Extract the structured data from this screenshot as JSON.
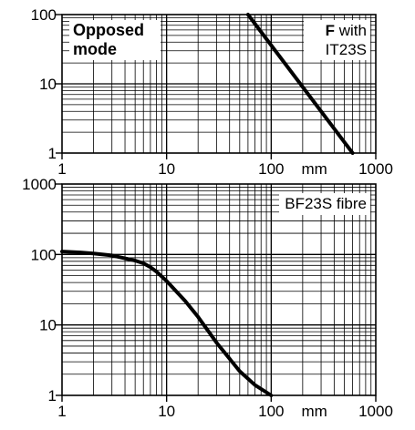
{
  "chart_data": [
    {
      "type": "line",
      "scale": {
        "x": "log",
        "y": "log"
      },
      "xlim": [
        1,
        1000
      ],
      "ylim": [
        1,
        100
      ],
      "grid": true,
      "x_ticks": [
        "1",
        "10",
        "100",
        "1000"
      ],
      "y_ticks": [
        "1",
        "10",
        "100"
      ],
      "x_unit": "mm",
      "annotations": {
        "left": [
          "Opposed",
          "mode"
        ],
        "right_bold": "F",
        "right_line1": " with",
        "right_line2": "IT23S"
      },
      "series": [
        {
          "x": [
            60,
            600
          ],
          "y": [
            100,
            1
          ]
        }
      ]
    },
    {
      "type": "line",
      "scale": {
        "x": "log",
        "y": "log"
      },
      "xlim": [
        1,
        1000
      ],
      "ylim": [
        1,
        1000
      ],
      "grid": true,
      "x_ticks": [
        "1",
        "10",
        "100",
        "1000"
      ],
      "y_ticks": [
        "1",
        "10",
        "100",
        "1000"
      ],
      "x_unit": "mm",
      "annotations": {
        "right": "BF23S fibre"
      },
      "series": [
        {
          "x": [
            1,
            1.5,
            2,
            3,
            4,
            5,
            6,
            7,
            8,
            10,
            15,
            20,
            30,
            50,
            70,
            100
          ],
          "y": [
            110,
            107,
            103,
            97,
            88,
            82,
            75,
            66,
            57,
            42,
            22,
            13,
            5.6,
            2.2,
            1.4,
            1.0
          ]
        }
      ]
    }
  ]
}
